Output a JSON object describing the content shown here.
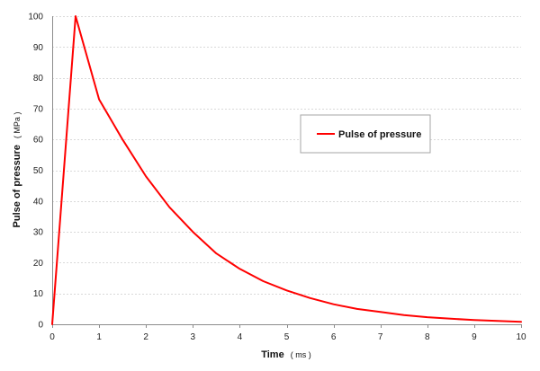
{
  "chart_data": {
    "type": "line",
    "title": "",
    "xlabel": "Time",
    "xunit": "( ms )",
    "ylabel": "Pulse of pressure",
    "yunit": "( MPa )",
    "xlim": [
      0,
      10
    ],
    "ylim": [
      0,
      100
    ],
    "xticks": [
      0,
      1,
      2,
      3,
      4,
      5,
      6,
      7,
      8,
      9,
      10
    ],
    "yticks": [
      0,
      10,
      20,
      30,
      40,
      50,
      60,
      70,
      80,
      90,
      100
    ],
    "grid": "horizontal",
    "legend_position": "center-right",
    "series": [
      {
        "name": "Pulse of pressure",
        "color": "#ff0000",
        "x": [
          0,
          0.5,
          1,
          1.5,
          2,
          2.5,
          3,
          3.5,
          4,
          4.5,
          5,
          5.5,
          6,
          6.5,
          7,
          7.5,
          8,
          8.5,
          9,
          9.5,
          10
        ],
        "values": [
          0,
          100,
          73,
          60,
          48,
          38,
          30,
          23,
          18,
          14,
          11,
          8.5,
          6.5,
          5,
          4,
          3,
          2.3,
          1.8,
          1.4,
          1.1,
          0.8
        ]
      }
    ]
  }
}
